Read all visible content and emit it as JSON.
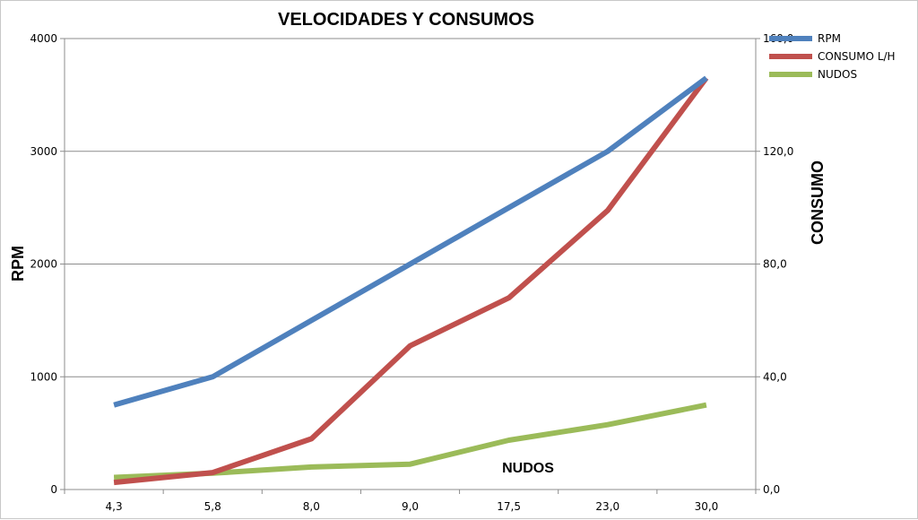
{
  "chart_data": {
    "type": "line",
    "title": "VELOCIDADES Y CONSUMOS",
    "ylabel": "RPM",
    "y2label": "CONSUMO",
    "annotation": "NUDOS",
    "categories": [
      "4,3",
      "5,8",
      "8,0",
      "9,0",
      "17,5",
      "23,0",
      "30,0"
    ],
    "ylim": [
      0,
      4000
    ],
    "y2lim": [
      0,
      160
    ],
    "yticks": [
      "0",
      "1000",
      "2000",
      "3000",
      "4000"
    ],
    "y2ticks": [
      "0,0",
      "40,0",
      "80,0",
      "120,0",
      "160,0"
    ],
    "grid": true,
    "legend_position": "top-right",
    "series": [
      {
        "name": "RPM",
        "axis": "left",
        "color": "#4f81bd",
        "values": [
          750,
          1000,
          1500,
          2000,
          2500,
          3000,
          3650
        ]
      },
      {
        "name": "CONSUMO L/H",
        "axis": "right",
        "color": "#c0504d",
        "values": [
          2.5,
          6,
          18,
          51,
          68,
          99,
          146
        ]
      },
      {
        "name": "NUDOS",
        "axis": "right",
        "color": "#9bbb59",
        "values": [
          4.3,
          5.8,
          8,
          9,
          17.5,
          23,
          30
        ]
      }
    ]
  }
}
